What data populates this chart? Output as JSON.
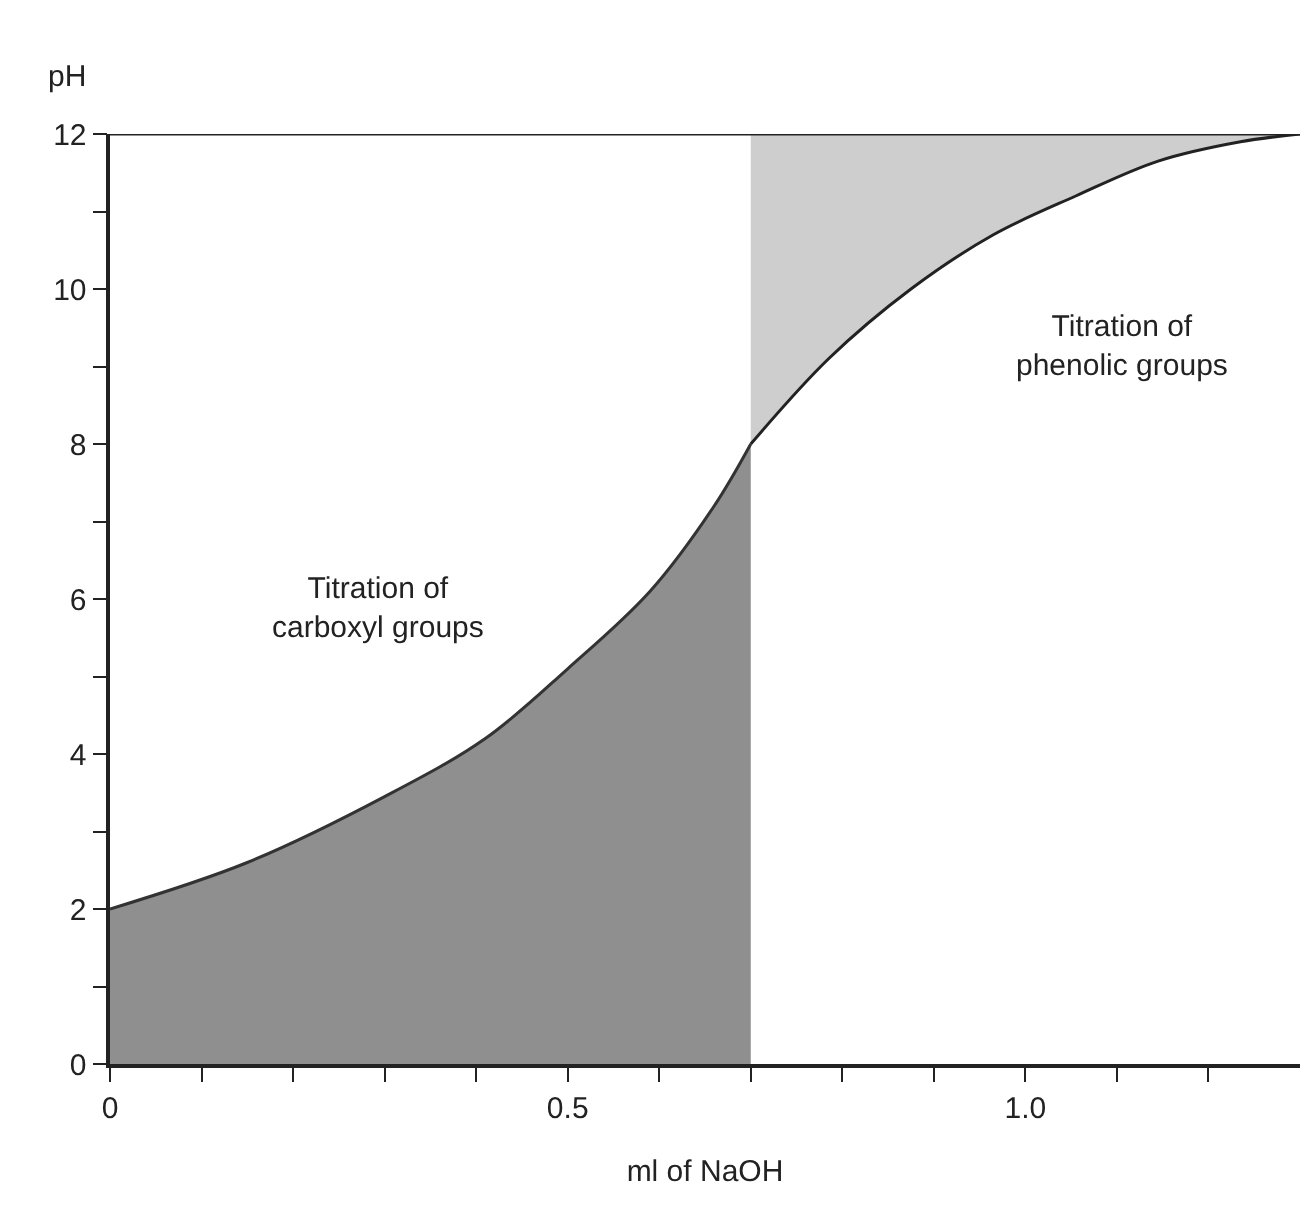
{
  "chart_data": {
    "type": "line",
    "xlabel": "ml of NaOH",
    "ylabel": "pH",
    "xlim": [
      0,
      1.3
    ],
    "ylim": [
      0,
      12
    ],
    "xticks": [
      0,
      {
        "value": 0.1,
        "label": null
      },
      {
        "value": 0.2,
        "label": null
      },
      {
        "value": 0.3,
        "label": null
      },
      {
        "value": 0.4,
        "label": null
      },
      0.5,
      {
        "value": 0.6,
        "label": null
      },
      {
        "value": 0.7,
        "label": null
      },
      {
        "value": 0.8,
        "label": null
      },
      {
        "value": 0.9,
        "label": null
      },
      {
        "value": 1,
        "label": "1.0"
      },
      {
        "value": 1.1,
        "label": null
      },
      {
        "value": 1.2,
        "label": null
      }
    ],
    "yticks": [
      0,
      {
        "value": 1,
        "label": null
      },
      2,
      {
        "value": 3,
        "label": null
      },
      4,
      {
        "value": 5,
        "label": null
      },
      6,
      {
        "value": 7,
        "label": null
      },
      8,
      {
        "value": 9,
        "label": null
      },
      10,
      {
        "value": 11,
        "label": null
      },
      12
    ],
    "series": [
      {
        "type": "area",
        "color": "#333333",
        "x": [
          0,
          0.15,
          0.3,
          0.41,
          0.5,
          0.59,
          0.66,
          0.7
        ],
        "values": [
          2,
          2.6,
          3.45,
          4.2,
          5.1,
          6.1,
          7.2,
          8
        ]
      },
      {
        "color": "#222222",
        "x": [
          0.7,
          0.785,
          0.875,
          0.965,
          1.055,
          1.145,
          1.235,
          1.3
        ],
        "values": [
          8,
          9.1,
          10,
          10.7,
          11.2,
          11.65,
          11.9,
          12
        ],
        "lower": [
          8,
          9.1,
          10,
          10.7,
          11.2,
          11.65,
          11.9,
          12
        ],
        "upper": [
          12,
          12,
          12,
          12,
          12,
          12,
          12,
          12
        ]
      }
    ],
    "ref_lines": [
      {
        "axis": "y",
        "value": 12,
        "color": "#222222"
      }
    ],
    "annotations": [
      "Titration of\ncarboxyl groups",
      "Titration of\nphenolic groups"
    ]
  }
}
